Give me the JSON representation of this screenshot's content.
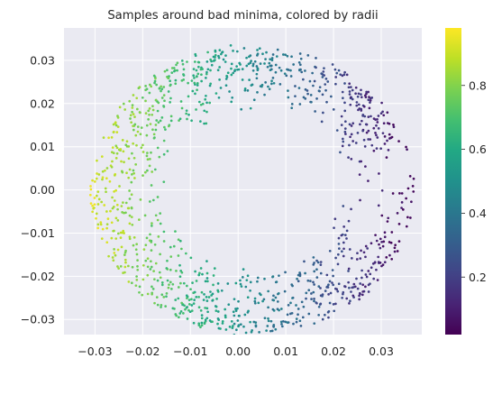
{
  "chart_data": {
    "type": "scatter",
    "title": "Samples around bad minima, colored by radii",
    "xlabel": "",
    "ylabel": "",
    "xlim": [
      -0.0365,
      0.0385
    ],
    "ylim": [
      -0.0335,
      0.0375
    ],
    "x_ticks": [
      -0.03,
      -0.02,
      -0.01,
      0.0,
      0.01,
      0.02,
      0.03
    ],
    "x_tick_labels": [
      "−0.03",
      "−0.02",
      "−0.01",
      "0.00",
      "0.01",
      "0.02",
      "0.03"
    ],
    "y_ticks": [
      -0.03,
      -0.02,
      -0.01,
      0.0,
      0.01,
      0.02,
      0.03
    ],
    "y_tick_labels": [
      "−0.03",
      "−0.02",
      "−0.01",
      "0.00",
      "0.01",
      "0.02",
      "0.03"
    ],
    "grid": true,
    "background_color": "#eaeaf2",
    "colormap": "viridis",
    "color_variable_range": [
      0.02,
      0.98
    ],
    "colorbar": {
      "ticks": [
        0.2,
        0.4,
        0.6,
        0.8
      ],
      "tick_labels": [
        "0.2",
        "0.4",
        "0.6",
        "0.8"
      ]
    },
    "point_count": 1200,
    "point_shape_description": "two-lobed ring (C-shape) with center x≈0.003, outer radius≈0.034, inner radius≈0.018, opening on the right; color decreases from yellow (left) to purple (right)",
    "ring_center": [
      0.003,
      0.0
    ]
  }
}
